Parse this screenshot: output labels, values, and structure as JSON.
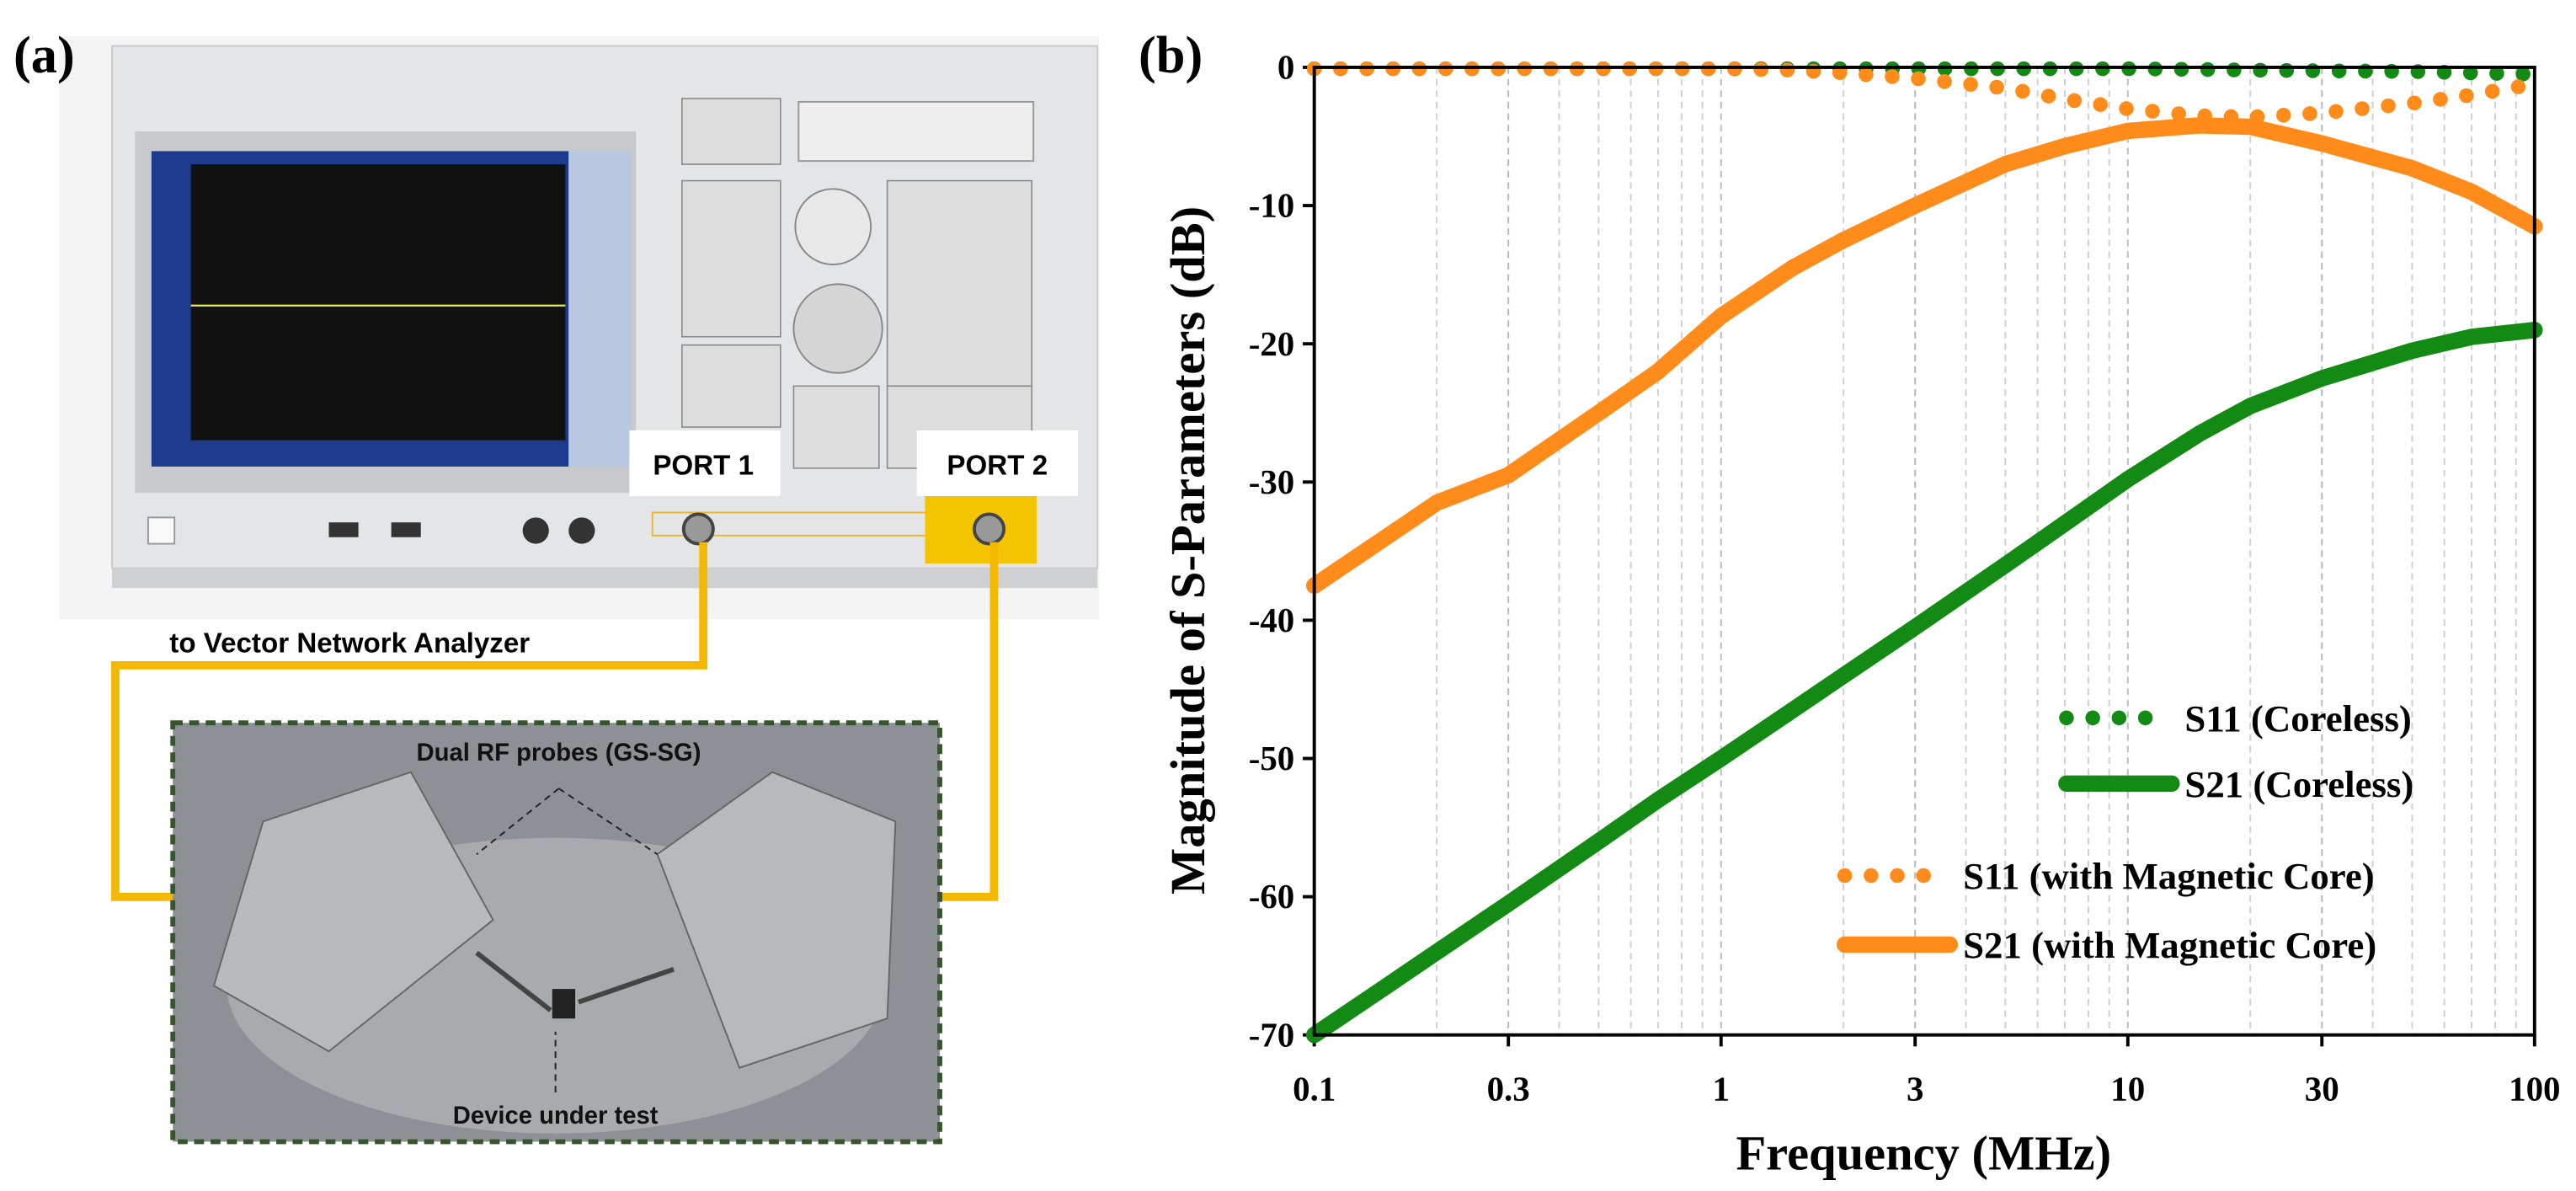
{
  "panel_a": {
    "label": "(a)",
    "port1": "PORT 1",
    "port2": "PORT 2",
    "vna_caption": "to Vector Network Analyzer",
    "probes_caption": "Dual RF probes (GS-SG)",
    "dut_caption": "Device under test"
  },
  "chart_data": {
    "type": "line",
    "panel_label": "(b)",
    "xlabel": "Frequency (MHz)",
    "ylabel": "Magnitude of S-Parameters (dB)",
    "x": [
      0.1,
      0.15,
      0.2,
      0.3,
      0.5,
      0.7,
      1,
      1.5,
      2,
      3,
      5,
      7,
      10,
      15,
      20,
      30,
      50,
      70,
      100
    ],
    "xscale": "log",
    "xlim": [
      0.1,
      100
    ],
    "xticks": [
      0.1,
      0.3,
      1,
      3,
      10,
      30,
      100
    ],
    "ylim": [
      -70,
      0
    ],
    "yticks": [
      0,
      -10,
      -20,
      -30,
      -40,
      -50,
      -60,
      -70
    ],
    "grid": true,
    "legend": "lower right",
    "series": [
      {
        "name": "S11 (Coreless)",
        "color": "#138a13",
        "style": "dotted",
        "values": [
          -0.1,
          -0.1,
          -0.1,
          -0.1,
          -0.1,
          -0.1,
          -0.1,
          -0.1,
          -0.1,
          -0.1,
          -0.1,
          -0.1,
          -0.1,
          -0.15,
          -0.2,
          -0.25,
          -0.3,
          -0.4,
          -0.5
        ]
      },
      {
        "name": "S21 (Coreless)",
        "color": "#138a13",
        "style": "solid",
        "values": [
          -70,
          -66.5,
          -64,
          -60.5,
          -56,
          -53,
          -50,
          -46.5,
          -44,
          -40.5,
          -36,
          -33,
          -29.8,
          -26.5,
          -24.5,
          -22.5,
          -20.5,
          -19.5,
          -19
        ]
      },
      {
        "name": "S11 (with Magnetic Core)",
        "color": "#ff8c1a",
        "style": "dotted",
        "values": [
          -0.1,
          -0.1,
          -0.1,
          -0.1,
          -0.1,
          -0.1,
          -0.1,
          -0.2,
          -0.4,
          -0.8,
          -1.5,
          -2.3,
          -3,
          -3.5,
          -3.6,
          -3.3,
          -2.6,
          -2,
          -1.2
        ]
      },
      {
        "name": "S21 (with Magnetic Core)",
        "color": "#ff8c1a",
        "style": "solid",
        "values": [
          -37.5,
          -34,
          -31.5,
          -29.5,
          -25,
          -22,
          -18,
          -14.5,
          -12.5,
          -10,
          -7,
          -5.7,
          -4.6,
          -4.2,
          -4.3,
          -5.5,
          -7.3,
          -9,
          -11.5
        ]
      }
    ]
  }
}
